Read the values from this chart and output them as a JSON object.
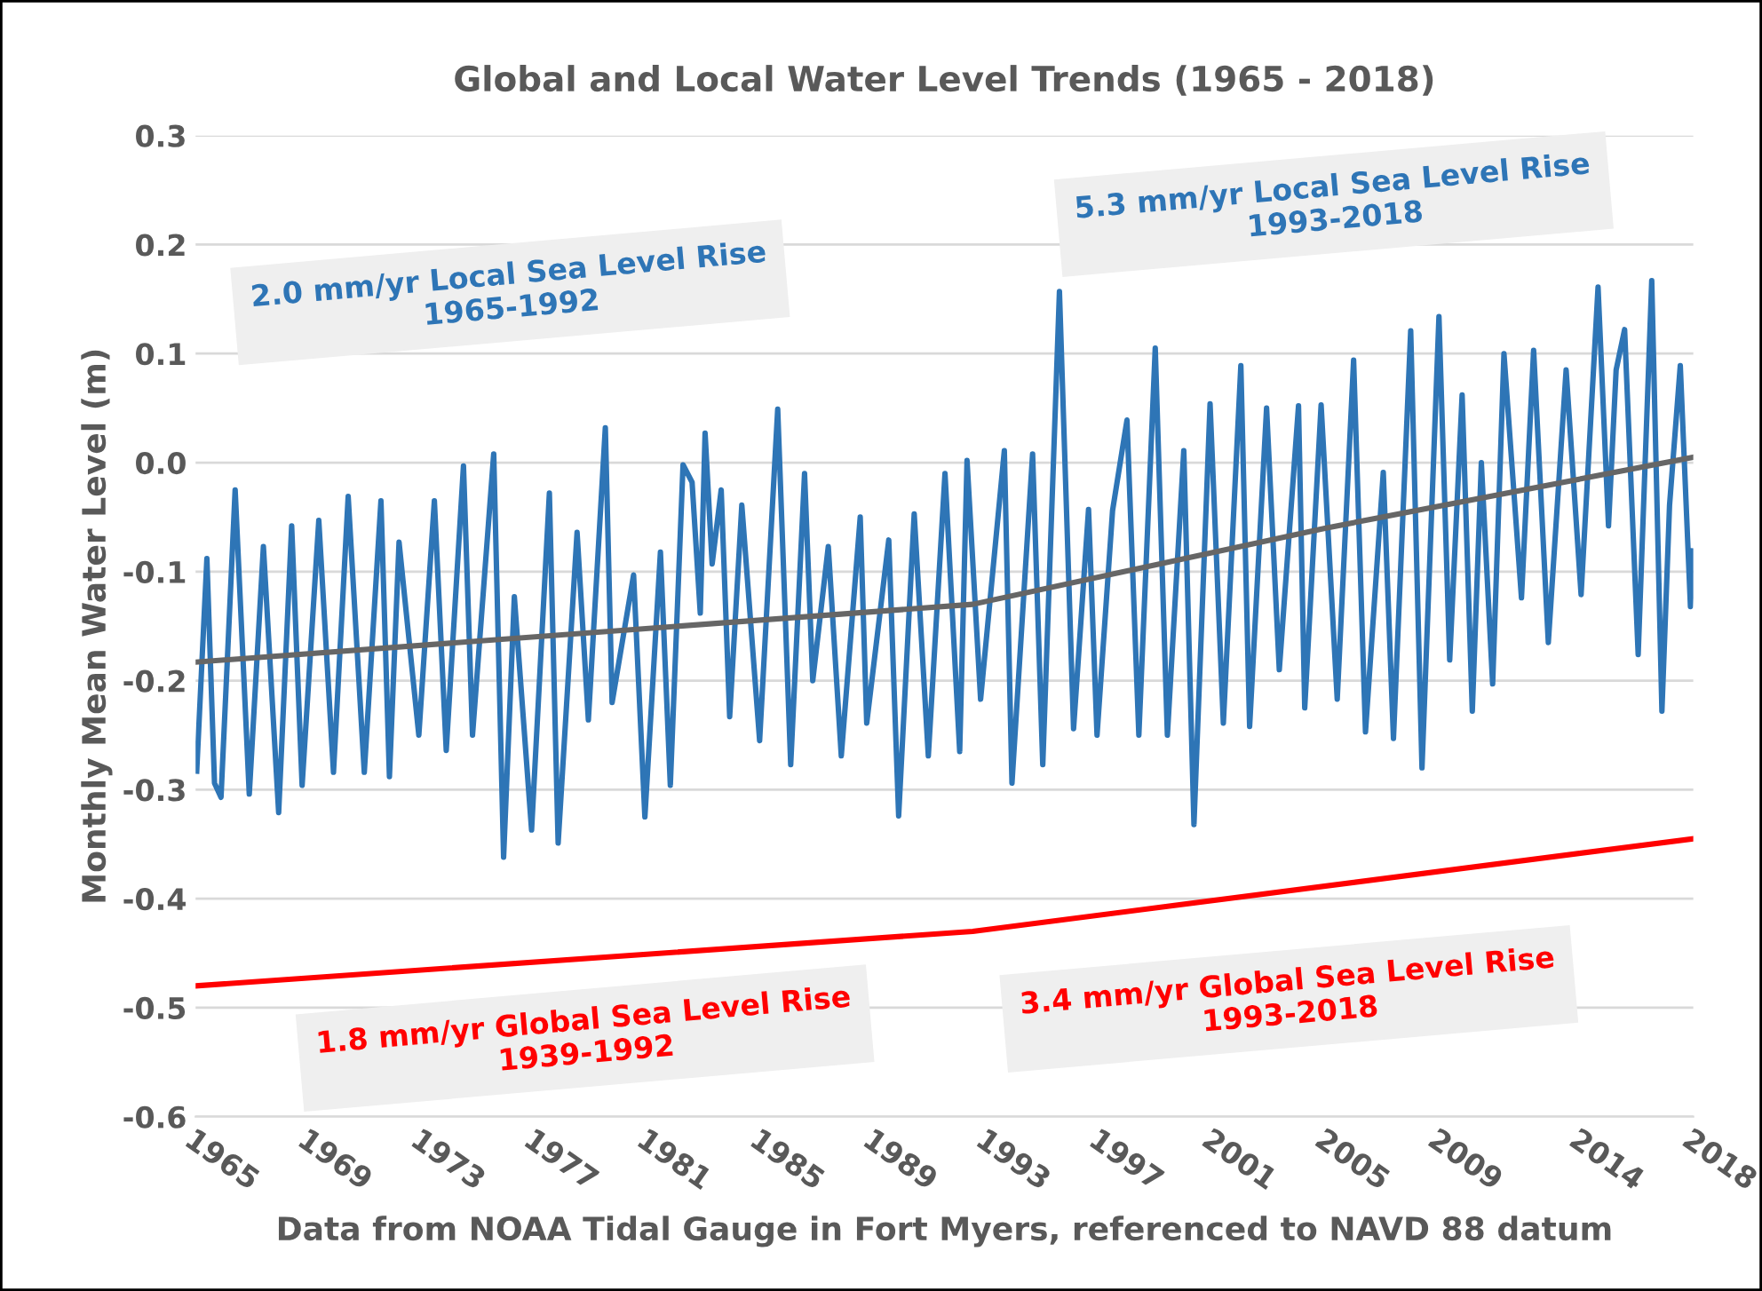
{
  "chart_data": {
    "type": "line",
    "title": "Global and Local Water Level Trends (1965 - 2018)",
    "xlabel": "Data from NOAA Tidal Gauge in Fort Myers, referenced to NAVD 88 datum",
    "ylabel": "Monthly Mean Water Level (m)",
    "series": [
      {
        "color": "#2e75b6",
        "x": [
          1965.04,
          1965.4,
          1965.67,
          1965.9,
          1966.4,
          1966.9,
          1967.4,
          1967.94,
          1968.4,
          1968.77,
          1969.36,
          1969.88,
          1970.4,
          1970.97,
          1971.56,
          1971.86,
          1972.2,
          1972.9,
          1973.45,
          1973.87,
          1974.48,
          1974.8,
          1975.55,
          1975.9,
          1976.28,
          1976.89,
          1977.52,
          1977.83,
          1978.5,
          1978.9,
          1979.5,
          1979.74,
          1980.5,
          1980.9,
          1981.45,
          1981.8,
          1982.25,
          1982.57,
          1982.86,
          1983.03,
          1983.28,
          1983.6,
          1983.9,
          1984.33,
          1984.96,
          1985.6,
          1986.06,
          1986.55,
          1986.84,
          1987.39,
          1987.85,
          1988.52,
          1988.75,
          1989.53,
          1989.88,
          1990.43,
          1990.93,
          1991.52,
          1992.04,
          1992.3,
          1992.78,
          1993.62,
          1993.89,
          1994.62,
          1994.98,
          1995.57,
          1996.07,
          1996.6,
          1996.9,
          1997.45,
          1997.96,
          1998.38,
          1998.96,
          1999.39,
          1999.97,
          2000.33,
          2000.9,
          2001.37,
          2001.99,
          2002.3,
          2002.9,
          2003.35,
          2004.03,
          2004.25,
          2004.83,
          2005.4,
          2005.98,
          2006.4,
          2007.03,
          2007.39,
          2008.0,
          2008.4,
          2009.0,
          2009.38,
          2009.82,
          2010.18,
          2010.5,
          2010.9,
          2011.3,
          2011.92,
          2012.35,
          2012.87,
          2013.5,
          2014.03,
          2014.63,
          2015.0,
          2015.27,
          2015.57,
          2016.05,
          2016.53,
          2016.89,
          2017.16,
          2017.54,
          2017.9,
          2018.0
        ],
        "values": [
          -0.283,
          -0.088,
          -0.294,
          -0.307,
          -0.025,
          -0.304,
          -0.077,
          -0.321,
          -0.058,
          -0.296,
          -0.053,
          -0.284,
          -0.031,
          -0.284,
          -0.035,
          -0.288,
          -0.073,
          -0.25,
          -0.035,
          -0.264,
          -0.003,
          -0.25,
          0.008,
          -0.362,
          -0.123,
          -0.337,
          -0.028,
          -0.349,
          -0.064,
          -0.236,
          0.032,
          -0.22,
          -0.103,
          -0.325,
          -0.082,
          -0.296,
          -0.002,
          -0.018,
          -0.138,
          0.027,
          -0.093,
          -0.025,
          -0.233,
          -0.039,
          -0.255,
          0.049,
          -0.277,
          -0.01,
          -0.2,
          -0.077,
          -0.269,
          -0.05,
          -0.239,
          -0.071,
          -0.324,
          -0.047,
          -0.269,
          -0.01,
          -0.265,
          0.002,
          -0.217,
          0.011,
          -0.294,
          0.008,
          -0.277,
          0.157,
          -0.244,
          -0.043,
          -0.25,
          -0.044,
          0.039,
          -0.25,
          0.105,
          -0.25,
          0.011,
          -0.332,
          0.054,
          -0.239,
          0.089,
          -0.242,
          0.05,
          -0.19,
          0.052,
          -0.225,
          0.053,
          -0.217,
          0.094,
          -0.247,
          -0.009,
          -0.253,
          0.121,
          -0.28,
          0.134,
          -0.181,
          0.062,
          -0.228,
          0.0,
          -0.203,
          0.1,
          -0.124,
          0.103,
          -0.165,
          0.085,
          -0.121,
          0.161,
          -0.058,
          0.085,
          0.122,
          -0.176,
          0.167,
          -0.228,
          -0.039,
          0.089,
          -0.132,
          -0.081
        ]
      },
      {
        "color": "#666666",
        "x": [
          1965,
          1992.5,
          2005,
          2018
        ],
        "values": [
          -0.183,
          -0.13,
          -0.06,
          0.005
        ]
      },
      {
        "color": "#ff0000",
        "x": [
          1965,
          1992.5,
          2018
        ],
        "values": [
          -0.48,
          -0.43,
          -0.345
        ]
      }
    ],
    "xlim": [
      1965,
      2018
    ],
    "ylim": [
      -0.6,
      0.3
    ],
    "xticks": [
      1965,
      1969,
      1973,
      1977,
      1981,
      1985,
      1989,
      1993,
      1997,
      2001,
      2005,
      2009,
      2014,
      2018
    ],
    "yticks": [
      {
        "value": -0.6,
        "label": "-0.6"
      },
      {
        "value": -0.5,
        "label": "-0.5"
      },
      {
        "value": -0.4,
        "label": "-0.4"
      },
      {
        "value": -0.3,
        "label": "-0.3"
      },
      {
        "value": -0.2,
        "label": "-0.2"
      },
      {
        "value": -0.1,
        "label": "-0.1"
      },
      {
        "value": 0.0,
        "label": "0.0"
      },
      {
        "value": 0.1,
        "label": "0.1"
      },
      {
        "value": 0.2,
        "label": "0.2"
      },
      {
        "value": 0.3,
        "label": "0.3"
      }
    ],
    "annotations": [
      "2.0 mm/yr Local Sea Level Rise\n1965-1992",
      "5.3 mm/yr Local Sea Level Rise\n1993-2018",
      "1.8 mm/yr Global Sea Level Rise\n1939-1992",
      "3.4 mm/yr Global Sea Level Rise\n1993-2018"
    ],
    "grid": "y",
    "legend": false,
    "marker": "none",
    "line_style": "solid"
  }
}
